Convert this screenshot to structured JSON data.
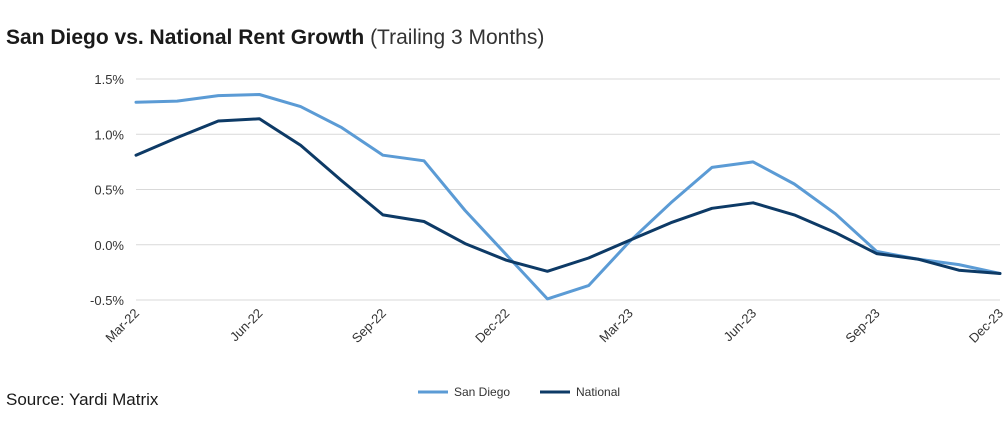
{
  "title": "San Diego vs. National Rent Growth",
  "subtitle": "(Trailing 3 Months)",
  "source": "Source: Yardi Matrix",
  "colors": {
    "san_diego": "#5b9bd5",
    "national": "#0d3a66",
    "grid": "#d9d9d9"
  },
  "chart_data": {
    "type": "line",
    "title": "San Diego vs. National Rent Growth",
    "subtitle": "(Trailing 3 Months)",
    "xlabel": "",
    "ylabel": "",
    "ylim": [
      -0.5,
      1.5
    ],
    "y_ticks": [
      "1.5%",
      "1.0%",
      "0.5%",
      "0.0%",
      "-0.5%"
    ],
    "y_tick_values": [
      1.5,
      1.0,
      0.5,
      0.0,
      -0.5
    ],
    "x": [
      "Mar-22",
      "Apr-22",
      "May-22",
      "Jun-22",
      "Jul-22",
      "Aug-22",
      "Sep-22",
      "Oct-22",
      "Nov-22",
      "Dec-22",
      "Jan-23",
      "Feb-23",
      "Mar-23",
      "Apr-23",
      "May-23",
      "Jun-23",
      "Jul-23",
      "Aug-23",
      "Sep-23",
      "Oct-23",
      "Nov-23",
      "Dec-23"
    ],
    "x_tick_labels": [
      "Mar-22",
      "Jun-22",
      "Sep-22",
      "Dec-22",
      "Mar-23",
      "Jun-23",
      "Sep-23",
      "Dec-23"
    ],
    "x_tick_indices": [
      0,
      3,
      6,
      9,
      12,
      15,
      18,
      21
    ],
    "grid": true,
    "legend_position": "bottom",
    "series": [
      {
        "name": "San Diego",
        "color": "#5b9bd5",
        "values": [
          1.29,
          1.3,
          1.35,
          1.36,
          1.25,
          1.06,
          0.81,
          0.76,
          0.31,
          -0.09,
          -0.49,
          -0.37,
          0.03,
          0.38,
          0.7,
          0.75,
          0.55,
          0.28,
          -0.06,
          -0.13,
          -0.18,
          -0.26
        ]
      },
      {
        "name": "National",
        "color": "#0d3a66",
        "values": [
          0.81,
          0.97,
          1.12,
          1.14,
          0.9,
          0.58,
          0.27,
          0.21,
          0.01,
          -0.14,
          -0.24,
          -0.12,
          0.04,
          0.2,
          0.33,
          0.38,
          0.27,
          0.11,
          -0.08,
          -0.13,
          -0.23,
          -0.26
        ]
      }
    ]
  }
}
